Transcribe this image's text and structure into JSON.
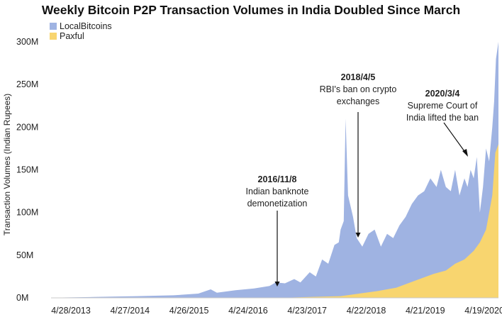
{
  "chart_data": {
    "type": "area",
    "title": "Weekly Bitcoin P2P Transaction Volumes in India Doubled Since March",
    "xlabel": "",
    "ylabel": "Transaction Volumes (Indian Rupees)",
    "ylim": [
      0,
      310
    ],
    "y_unit": "M INR",
    "stacked": true,
    "yticks": [
      {
        "value": 0,
        "label": "0M"
      },
      {
        "value": 50,
        "label": "50M"
      },
      {
        "value": 100,
        "label": "100M"
      },
      {
        "value": 150,
        "label": "150M"
      },
      {
        "value": 200,
        "label": "200M"
      },
      {
        "value": 250,
        "label": "250M"
      },
      {
        "value": 300,
        "label": "300M"
      }
    ],
    "xticks": [
      "4/28/2013",
      "4/27/2014",
      "4/26/2015",
      "4/24/2016",
      "4/23/2017",
      "4/22/2018",
      "4/21/2019",
      "4/19/2020"
    ],
    "xrange_years": [
      2013.32,
      2020.55
    ],
    "legend": [
      {
        "name": "LocalBitcoins",
        "color": "#9fb3e2"
      },
      {
        "name": "Paxful",
        "color": "#f8d56f"
      }
    ],
    "series": [
      {
        "name": "LocalBitcoins",
        "color": "#9fb3e2",
        "points": [
          [
            2013.32,
            0.2
          ],
          [
            2013.6,
            0.5
          ],
          [
            2014.0,
            1
          ],
          [
            2014.3,
            1.5
          ],
          [
            2014.7,
            2
          ],
          [
            2015.0,
            2.5
          ],
          [
            2015.3,
            3
          ],
          [
            2015.7,
            5
          ],
          [
            2015.9,
            10
          ],
          [
            2016.0,
            6
          ],
          [
            2016.3,
            9
          ],
          [
            2016.6,
            11
          ],
          [
            2016.85,
            14
          ],
          [
            2016.95,
            18
          ],
          [
            2017.1,
            17
          ],
          [
            2017.25,
            22
          ],
          [
            2017.35,
            18
          ],
          [
            2017.5,
            30
          ],
          [
            2017.6,
            25
          ],
          [
            2017.7,
            45
          ],
          [
            2017.8,
            40
          ],
          [
            2017.9,
            62
          ],
          [
            2017.97,
            65
          ],
          [
            2018.0,
            80
          ],
          [
            2018.05,
            90
          ],
          [
            2018.08,
            210
          ],
          [
            2018.12,
            120
          ],
          [
            2018.2,
            95
          ],
          [
            2018.26,
            70
          ],
          [
            2018.35,
            60
          ],
          [
            2018.45,
            75
          ],
          [
            2018.55,
            80
          ],
          [
            2018.65,
            60
          ],
          [
            2018.75,
            75
          ],
          [
            2018.85,
            70
          ],
          [
            2018.95,
            85
          ],
          [
            2019.05,
            95
          ],
          [
            2019.15,
            110
          ],
          [
            2019.25,
            120
          ],
          [
            2019.35,
            125
          ],
          [
            2019.45,
            140
          ],
          [
            2019.55,
            130
          ],
          [
            2019.62,
            150
          ],
          [
            2019.7,
            130
          ],
          [
            2019.78,
            125
          ],
          [
            2019.85,
            150
          ],
          [
            2019.92,
            120
          ],
          [
            2020.0,
            140
          ],
          [
            2020.05,
            130
          ],
          [
            2020.1,
            150
          ],
          [
            2020.15,
            140
          ],
          [
            2020.2,
            165
          ],
          [
            2020.25,
            100
          ],
          [
            2020.3,
            130
          ],
          [
            2020.35,
            175
          ],
          [
            2020.4,
            160
          ],
          [
            2020.45,
            200
          ],
          [
            2020.48,
            230
          ],
          [
            2020.51,
            280
          ],
          [
            2020.55,
            300
          ]
        ]
      },
      {
        "name": "Paxful",
        "color": "#f8d56f",
        "points": [
          [
            2013.32,
            0
          ],
          [
            2017.0,
            0
          ],
          [
            2017.5,
            1
          ],
          [
            2018.0,
            2
          ],
          [
            2018.3,
            5
          ],
          [
            2018.6,
            8
          ],
          [
            2018.9,
            12
          ],
          [
            2019.2,
            20
          ],
          [
            2019.5,
            28
          ],
          [
            2019.7,
            32
          ],
          [
            2019.85,
            40
          ],
          [
            2020.0,
            45
          ],
          [
            2020.15,
            55
          ],
          [
            2020.25,
            65
          ],
          [
            2020.35,
            80
          ],
          [
            2020.45,
            120
          ],
          [
            2020.5,
            170
          ],
          [
            2020.55,
            180
          ]
        ]
      }
    ],
    "annotations": [
      {
        "id": "demonetization",
        "title": "2016/11/8",
        "lines": [
          "Indian banknote",
          "demonetization"
        ],
        "x": 2016.85,
        "y": 14
      },
      {
        "id": "rbi-ban",
        "title": "2018/4/5",
        "lines": [
          "RBI's ban on crypto",
          "exchanges"
        ],
        "x": 2018.26,
        "y": 70
      },
      {
        "id": "court",
        "title": "2020/3/4",
        "lines": [
          "Supreme Court of",
          "India lifted the ban"
        ],
        "x": 2020.17,
        "y": 158
      }
    ]
  }
}
